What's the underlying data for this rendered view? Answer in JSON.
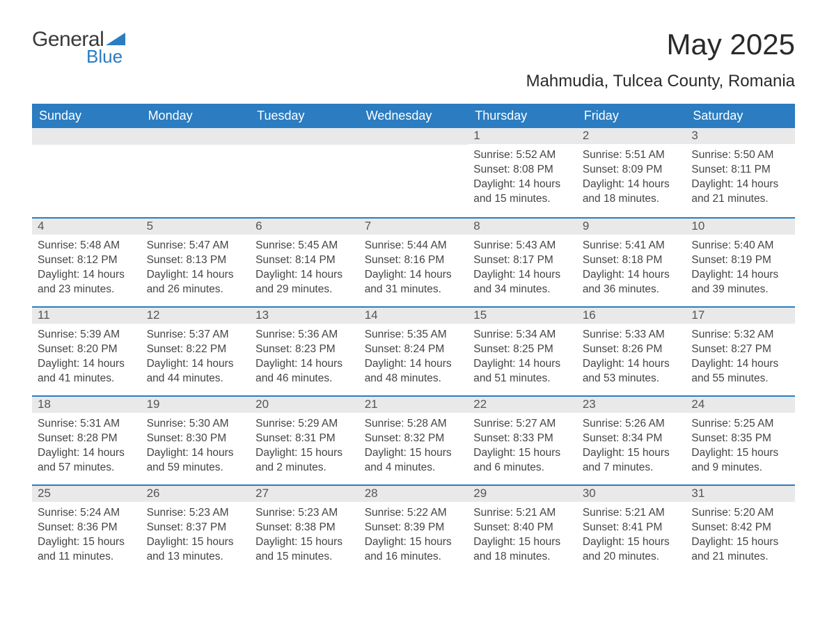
{
  "logo": {
    "general": "General",
    "blue": "Blue"
  },
  "title": "May 2025",
  "location": "Mahmudia, Tulcea County, Romania",
  "colors": {
    "header_bg": "#2b7cc0",
    "header_text": "#ffffff",
    "daynum_bg": "#e9e9e9",
    "day_border": "#2b7cc0",
    "body_text": "#444444",
    "title_text": "#2a2a2a",
    "logo_gray": "#3a3a3a",
    "logo_blue": "#2b7cc0",
    "page_bg": "#ffffff"
  },
  "weekdays": [
    "Sunday",
    "Monday",
    "Tuesday",
    "Wednesday",
    "Thursday",
    "Friday",
    "Saturday"
  ],
  "fonts": {
    "title_size": 42,
    "location_size": 24,
    "header_size": 18,
    "daynum_size": 17,
    "body_size": 15.5
  },
  "weeks": [
    [
      null,
      null,
      null,
      null,
      {
        "n": "1",
        "sunrise": "Sunrise: 5:52 AM",
        "sunset": "Sunset: 8:08 PM",
        "day1": "Daylight: 14 hours",
        "day2": "and 15 minutes."
      },
      {
        "n": "2",
        "sunrise": "Sunrise: 5:51 AM",
        "sunset": "Sunset: 8:09 PM",
        "day1": "Daylight: 14 hours",
        "day2": "and 18 minutes."
      },
      {
        "n": "3",
        "sunrise": "Sunrise: 5:50 AM",
        "sunset": "Sunset: 8:11 PM",
        "day1": "Daylight: 14 hours",
        "day2": "and 21 minutes."
      }
    ],
    [
      {
        "n": "4",
        "sunrise": "Sunrise: 5:48 AM",
        "sunset": "Sunset: 8:12 PM",
        "day1": "Daylight: 14 hours",
        "day2": "and 23 minutes."
      },
      {
        "n": "5",
        "sunrise": "Sunrise: 5:47 AM",
        "sunset": "Sunset: 8:13 PM",
        "day1": "Daylight: 14 hours",
        "day2": "and 26 minutes."
      },
      {
        "n": "6",
        "sunrise": "Sunrise: 5:45 AM",
        "sunset": "Sunset: 8:14 PM",
        "day1": "Daylight: 14 hours",
        "day2": "and 29 minutes."
      },
      {
        "n": "7",
        "sunrise": "Sunrise: 5:44 AM",
        "sunset": "Sunset: 8:16 PM",
        "day1": "Daylight: 14 hours",
        "day2": "and 31 minutes."
      },
      {
        "n": "8",
        "sunrise": "Sunrise: 5:43 AM",
        "sunset": "Sunset: 8:17 PM",
        "day1": "Daylight: 14 hours",
        "day2": "and 34 minutes."
      },
      {
        "n": "9",
        "sunrise": "Sunrise: 5:41 AM",
        "sunset": "Sunset: 8:18 PM",
        "day1": "Daylight: 14 hours",
        "day2": "and 36 minutes."
      },
      {
        "n": "10",
        "sunrise": "Sunrise: 5:40 AM",
        "sunset": "Sunset: 8:19 PM",
        "day1": "Daylight: 14 hours",
        "day2": "and 39 minutes."
      }
    ],
    [
      {
        "n": "11",
        "sunrise": "Sunrise: 5:39 AM",
        "sunset": "Sunset: 8:20 PM",
        "day1": "Daylight: 14 hours",
        "day2": "and 41 minutes."
      },
      {
        "n": "12",
        "sunrise": "Sunrise: 5:37 AM",
        "sunset": "Sunset: 8:22 PM",
        "day1": "Daylight: 14 hours",
        "day2": "and 44 minutes."
      },
      {
        "n": "13",
        "sunrise": "Sunrise: 5:36 AM",
        "sunset": "Sunset: 8:23 PM",
        "day1": "Daylight: 14 hours",
        "day2": "and 46 minutes."
      },
      {
        "n": "14",
        "sunrise": "Sunrise: 5:35 AM",
        "sunset": "Sunset: 8:24 PM",
        "day1": "Daylight: 14 hours",
        "day2": "and 48 minutes."
      },
      {
        "n": "15",
        "sunrise": "Sunrise: 5:34 AM",
        "sunset": "Sunset: 8:25 PM",
        "day1": "Daylight: 14 hours",
        "day2": "and 51 minutes."
      },
      {
        "n": "16",
        "sunrise": "Sunrise: 5:33 AM",
        "sunset": "Sunset: 8:26 PM",
        "day1": "Daylight: 14 hours",
        "day2": "and 53 minutes."
      },
      {
        "n": "17",
        "sunrise": "Sunrise: 5:32 AM",
        "sunset": "Sunset: 8:27 PM",
        "day1": "Daylight: 14 hours",
        "day2": "and 55 minutes."
      }
    ],
    [
      {
        "n": "18",
        "sunrise": "Sunrise: 5:31 AM",
        "sunset": "Sunset: 8:28 PM",
        "day1": "Daylight: 14 hours",
        "day2": "and 57 minutes."
      },
      {
        "n": "19",
        "sunrise": "Sunrise: 5:30 AM",
        "sunset": "Sunset: 8:30 PM",
        "day1": "Daylight: 14 hours",
        "day2": "and 59 minutes."
      },
      {
        "n": "20",
        "sunrise": "Sunrise: 5:29 AM",
        "sunset": "Sunset: 8:31 PM",
        "day1": "Daylight: 15 hours",
        "day2": "and 2 minutes."
      },
      {
        "n": "21",
        "sunrise": "Sunrise: 5:28 AM",
        "sunset": "Sunset: 8:32 PM",
        "day1": "Daylight: 15 hours",
        "day2": "and 4 minutes."
      },
      {
        "n": "22",
        "sunrise": "Sunrise: 5:27 AM",
        "sunset": "Sunset: 8:33 PM",
        "day1": "Daylight: 15 hours",
        "day2": "and 6 minutes."
      },
      {
        "n": "23",
        "sunrise": "Sunrise: 5:26 AM",
        "sunset": "Sunset: 8:34 PM",
        "day1": "Daylight: 15 hours",
        "day2": "and 7 minutes."
      },
      {
        "n": "24",
        "sunrise": "Sunrise: 5:25 AM",
        "sunset": "Sunset: 8:35 PM",
        "day1": "Daylight: 15 hours",
        "day2": "and 9 minutes."
      }
    ],
    [
      {
        "n": "25",
        "sunrise": "Sunrise: 5:24 AM",
        "sunset": "Sunset: 8:36 PM",
        "day1": "Daylight: 15 hours",
        "day2": "and 11 minutes."
      },
      {
        "n": "26",
        "sunrise": "Sunrise: 5:23 AM",
        "sunset": "Sunset: 8:37 PM",
        "day1": "Daylight: 15 hours",
        "day2": "and 13 minutes."
      },
      {
        "n": "27",
        "sunrise": "Sunrise: 5:23 AM",
        "sunset": "Sunset: 8:38 PM",
        "day1": "Daylight: 15 hours",
        "day2": "and 15 minutes."
      },
      {
        "n": "28",
        "sunrise": "Sunrise: 5:22 AM",
        "sunset": "Sunset: 8:39 PM",
        "day1": "Daylight: 15 hours",
        "day2": "and 16 minutes."
      },
      {
        "n": "29",
        "sunrise": "Sunrise: 5:21 AM",
        "sunset": "Sunset: 8:40 PM",
        "day1": "Daylight: 15 hours",
        "day2": "and 18 minutes."
      },
      {
        "n": "30",
        "sunrise": "Sunrise: 5:21 AM",
        "sunset": "Sunset: 8:41 PM",
        "day1": "Daylight: 15 hours",
        "day2": "and 20 minutes."
      },
      {
        "n": "31",
        "sunrise": "Sunrise: 5:20 AM",
        "sunset": "Sunset: 8:42 PM",
        "day1": "Daylight: 15 hours",
        "day2": "and 21 minutes."
      }
    ]
  ]
}
